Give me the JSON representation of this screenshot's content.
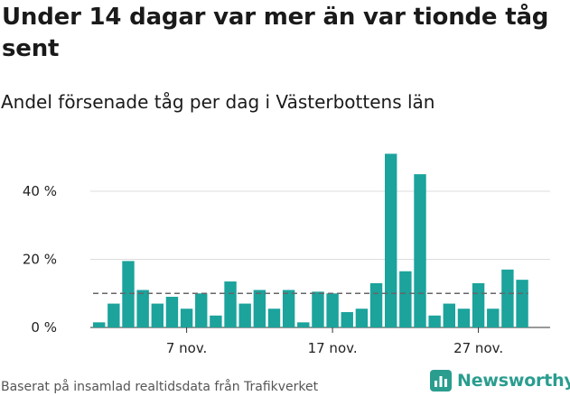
{
  "title": "Under 14 dagar var mer än var tionde tåg sent",
  "subtitle": "Andel försenade tåg per dag i Västerbottens län",
  "footer": "Baserat på insamlad realtidsdata från Trafikverket",
  "logo": {
    "text": "Newsworthy",
    "icon": "newsworthy-logo-icon"
  },
  "colors": {
    "bar": "#1ba39c",
    "grid": "#dddddd",
    "reference": "#666666",
    "logo": "#2a9d8f"
  },
  "chart_data": {
    "type": "bar",
    "x": [
      1,
      2,
      3,
      4,
      5,
      6,
      7,
      8,
      9,
      10,
      11,
      12,
      13,
      14,
      15,
      16,
      17,
      18,
      19,
      20,
      21,
      22,
      23,
      24,
      25,
      26,
      27,
      28,
      29,
      30
    ],
    "values": [
      1.5,
      7,
      19.5,
      11,
      7,
      9,
      5.5,
      10,
      3.5,
      13.5,
      7,
      11,
      5.5,
      11,
      1.5,
      10.5,
      10,
      4.5,
      5.5,
      13,
      51,
      16.5,
      45,
      3.5,
      7,
      5.5,
      13,
      5.5,
      17,
      14
    ],
    "reference_value": 10,
    "y_ticks": [
      0,
      20,
      40
    ],
    "y_tick_labels": [
      "0 %",
      "20 %",
      "40 %"
    ],
    "x_ticks": [
      7,
      17,
      27
    ],
    "x_tick_labels": [
      "7 nov.",
      "17 nov.",
      "27 nov."
    ],
    "ylim": [
      0,
      52
    ],
    "grid": true,
    "xlabel": "",
    "ylabel": ""
  }
}
